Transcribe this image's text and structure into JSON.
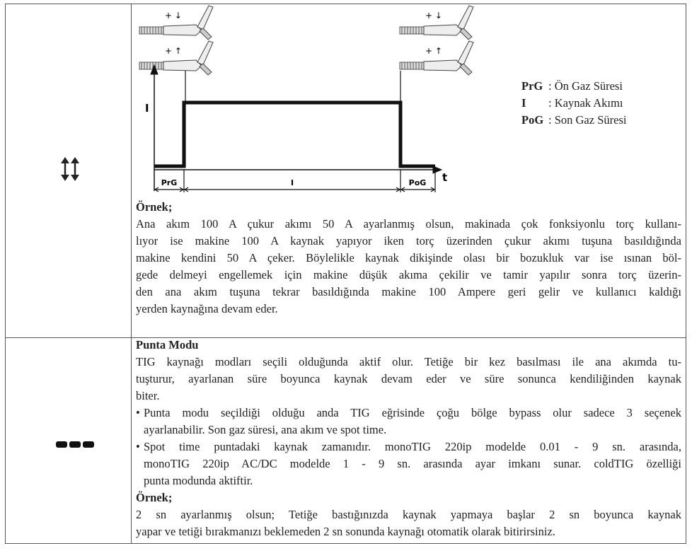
{
  "rows": [
    {
      "diagram": {
        "torch_signs": [
          "+ ↓",
          "+ ↑"
        ],
        "current_axis": "I",
        "time_axis": "t",
        "segments": [
          "PrG",
          "I",
          "PoG"
        ],
        "legend": [
          {
            "key": "PrG",
            "text": ": Ön Gaz Süresi"
          },
          {
            "key": "I",
            "text": ": Kaynak Akımı"
          },
          {
            "key": "PoG",
            "text": ": Son Gaz Süresi"
          }
        ]
      },
      "example_title": "Örnek;",
      "example_lines": [
        "Ana akım 100 A çukur akımı 50 A ayarlanmış olsun, makinada çok fonksiyonlu torç kullanı-",
        "lıyor ise makine 100 A kaynak yapıyor iken torç üzerinden çukur akımı tuşuna basıldığında",
        "makine kendini 50 A çeker. Böylelikle kaynak dikişinde olası bir bozukluk var ise ısınan böl-",
        "gede delmeyi engellemek için makine düşük akıma çekilir ve tamir yapılır sonra torç üzerin-",
        "den ana akım tuşuna tekrar basıldığında makine 100 Ampere geri gelir ve kullanıcı kaldığı",
        "yerden kaynağına devam eder."
      ]
    },
    {
      "title": "Punta Modu",
      "intro_lines": [
        "TIG kaynağı modları seçili olduğunda aktif olur. Tetiğe bir kez basılması ile ana akımda tu-",
        "tuşturur, ayarlanan süre boyunca kaynak devam eder ve süre sonunca kendiliğinden kaynak",
        "biter."
      ],
      "bullets": [
        [
          "Punta modu seçildiği olduğu anda TIG eğrisinde çoğu bölge bypass olur sadece 3 seçenek",
          "ayarlanabilir. Son gaz süresi, ana akım ve spot time."
        ],
        [
          "Spot time puntadaki kaynak zamanıdır. monoTIG 220ip modelde 0.01 - 9 sn. arasında,",
          "monoTIG 220ip AC/DC modelde 1 - 9 sn. arasında ayar imkanı sunar. coldTIG özelliği",
          "punta modunda aktiftir."
        ]
      ],
      "example_title": "Örnek;",
      "example_lines": [
        "2 sn ayarlanmış olsun; Tetiğe bastığınızda kaynak yapmaya başlar 2 sn boyunca kaynak",
        "yapar ve tetiği bırakmanızı beklemeden 2 sn sonunda kaynağı otomatik olarak bitirirsiniz."
      ]
    }
  ]
}
